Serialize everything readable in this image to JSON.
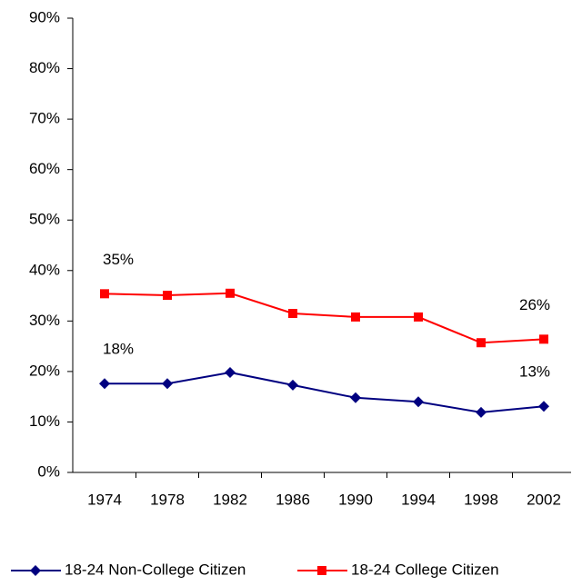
{
  "chart_data": {
    "type": "line",
    "categories": [
      "1974",
      "1978",
      "1982",
      "1986",
      "1990",
      "1994",
      "1998",
      "2002"
    ],
    "series": [
      {
        "name": "18-24 Non-College Citizen",
        "color": "#000080",
        "marker": "diamond",
        "values": [
          17.6,
          17.6,
          19.8,
          17.3,
          14.8,
          14.0,
          11.9,
          13.1
        ],
        "value_labels": [
          "18%",
          null,
          null,
          null,
          null,
          null,
          null,
          "13%"
        ]
      },
      {
        "name": "18-24 College Citizen",
        "color": "#ff0000",
        "marker": "square",
        "values": [
          35.4,
          35.1,
          35.5,
          31.5,
          30.8,
          30.8,
          25.7,
          26.4
        ],
        "value_labels": [
          "35%",
          null,
          null,
          null,
          null,
          null,
          null,
          "26%"
        ]
      }
    ],
    "ylim": [
      0,
      90
    ],
    "yticks": [
      {
        "value": 0,
        "label": "0%"
      },
      {
        "value": 10,
        "label": "10%"
      },
      {
        "value": 20,
        "label": "20%"
      },
      {
        "value": 30,
        "label": "30%"
      },
      {
        "value": 40,
        "label": "40%"
      },
      {
        "value": 50,
        "label": "50%"
      },
      {
        "value": 60,
        "label": "60%"
      },
      {
        "value": 70,
        "label": "70%"
      },
      {
        "value": 80,
        "label": "80%"
      },
      {
        "value": 90,
        "label": "90%"
      }
    ],
    "grid": false,
    "legend": "bottom"
  }
}
